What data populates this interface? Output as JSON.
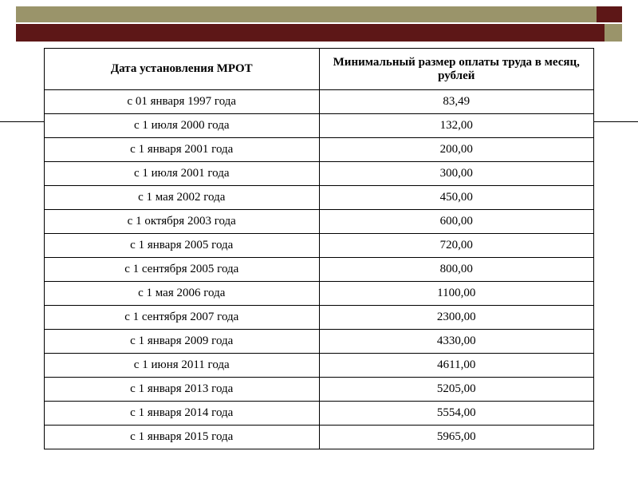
{
  "decor": {
    "olive": "#9a946a",
    "maroon": "#5d1717",
    "background": "#ffffff",
    "border": "#000000"
  },
  "table": {
    "type": "table",
    "columns": [
      "Дата установления МРОТ",
      "Минимальный размер оплаты труда в месяц, рублей"
    ],
    "rows": [
      [
        "с 01 января 1997 года",
        "83,49"
      ],
      [
        "с 1 июля 2000 года",
        "132,00"
      ],
      [
        "с 1 января 2001 года",
        "200,00"
      ],
      [
        "с 1 июля 2001 года",
        "300,00"
      ],
      [
        "с 1 мая 2002 года",
        "450,00"
      ],
      [
        "с 1 октября 2003 года",
        "600,00"
      ],
      [
        "с 1 января 2005 года",
        "720,00"
      ],
      [
        "с 1 сентября 2005 года",
        "800,00"
      ],
      [
        "с 1 мая 2006 года",
        "1100,00"
      ],
      [
        "с 1 сентября 2007 года",
        "2300,00"
      ],
      [
        "с 1 января 2009 года",
        "4330,00"
      ],
      [
        "с 1 июня 2011 года",
        "4611,00"
      ],
      [
        "с 1 января 2013 года",
        "5205,00"
      ],
      [
        "с 1 января 2014 года",
        "5554,00"
      ],
      [
        "с 1 января 2015 года",
        "5965,00"
      ]
    ],
    "header_fontsize": 15,
    "cell_fontsize": 15,
    "text_color": "#000000",
    "border_color": "#000000",
    "col_widths_pct": [
      50,
      50
    ],
    "alignment": "center"
  }
}
